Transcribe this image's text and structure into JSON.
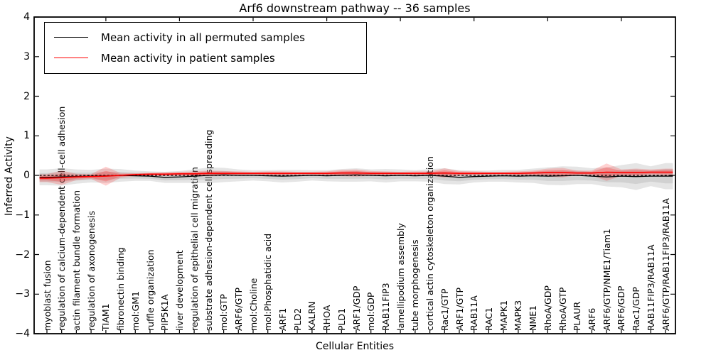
{
  "chart_data": {
    "type": "line",
    "title": "Arf6 downstream pathway -- 36 samples",
    "xlabel": "Cellular Entities",
    "ylabel": "Inferred Activity",
    "ylim": [
      -4,
      4
    ],
    "yticks": [
      -4,
      -3,
      -2,
      -1,
      0,
      1,
      2,
      3,
      4
    ],
    "grid": false,
    "legend_position": "upper left",
    "zero_line": {
      "style": "dotted",
      "color": "#000000"
    },
    "categories": [
      "myoblast fusion",
      "regulation of calcium-dependent cell-cell adhesion",
      "actin filament bundle formation",
      "regulation of axonogenesis",
      "TIAM1",
      "fibronectin binding",
      "mol:GM1",
      "ruffle organization",
      "PIP5K1A",
      "liver development",
      "regulation of epithelial cell migration",
      "substrate adhesion-dependent cell spreading",
      "mol:GTP",
      "ARF6/GTP",
      "mol:Choline",
      "mol:Phosphatidic acid",
      "ARF1",
      "PLD2",
      "KALRN",
      "RHOA",
      "PLD1",
      "ARF1/GDP",
      "mol:GDP",
      "RAB11FIP3",
      "lamellipodium assembly",
      "tube morphogenesis",
      "cortical actin cytoskeleton organization",
      "Rac1/GTP",
      "ARF1/GTP",
      "RAB11A",
      "RAC1",
      "MAPK1",
      "MAPK3",
      "NME1",
      "RhoA/GDP",
      "RhoA/GTP",
      "PLAUR",
      "ARF6",
      "ARF6/GTP/NME1/Tiam1",
      "ARF6/GDP",
      "Rac1/GDP",
      "RAB11FIP3/RAB11A",
      "ARF6/GTP/RAB11FIP3/RAB11A"
    ],
    "series": [
      {
        "name": "Mean activity in all permuted samples",
        "color": "#000000",
        "band_color": "#999999",
        "values": [
          -0.05,
          -0.04,
          -0.03,
          -0.02,
          -0.01,
          0.0,
          -0.01,
          -0.02,
          -0.05,
          -0.04,
          -0.02,
          0.0,
          0.01,
          0.0,
          0.0,
          -0.01,
          -0.02,
          -0.01,
          0.0,
          -0.01,
          0.0,
          0.01,
          0.0,
          -0.01,
          0.0,
          -0.01,
          0.0,
          -0.02,
          -0.05,
          -0.03,
          -0.02,
          -0.01,
          -0.02,
          -0.01,
          -0.02,
          -0.01,
          0.0,
          -0.02,
          -0.04,
          -0.02,
          -0.03,
          -0.02,
          -0.02
        ],
        "band_halfwidth": [
          0.2,
          0.22,
          0.18,
          0.16,
          0.18,
          0.16,
          0.13,
          0.12,
          0.14,
          0.15,
          0.17,
          0.2,
          0.18,
          0.15,
          0.13,
          0.14,
          0.16,
          0.15,
          0.13,
          0.14,
          0.16,
          0.17,
          0.15,
          0.17,
          0.15,
          0.14,
          0.16,
          0.2,
          0.18,
          0.15,
          0.14,
          0.15,
          0.16,
          0.18,
          0.22,
          0.24,
          0.22,
          0.2,
          0.24,
          0.28,
          0.34,
          0.25,
          0.33
        ]
      },
      {
        "name": "Mean activity in patient samples",
        "color": "#ff0000",
        "band_color": "#ff0000",
        "values": [
          -0.07,
          -0.06,
          -0.04,
          -0.03,
          -0.02,
          0.0,
          0.02,
          0.03,
          0.03,
          0.04,
          0.04,
          0.05,
          0.05,
          0.05,
          0.05,
          0.05,
          0.05,
          0.05,
          0.05,
          0.05,
          0.06,
          0.06,
          0.05,
          0.05,
          0.05,
          0.05,
          0.05,
          0.06,
          0.05,
          0.05,
          0.05,
          0.05,
          0.05,
          0.06,
          0.07,
          0.07,
          0.06,
          0.06,
          0.08,
          0.07,
          0.07,
          0.08,
          0.08
        ],
        "band_halfwidth": [
          0.1,
          0.18,
          0.08,
          0.06,
          0.24,
          0.06,
          0.04,
          0.04,
          0.05,
          0.05,
          0.06,
          0.07,
          0.06,
          0.05,
          0.04,
          0.05,
          0.05,
          0.04,
          0.04,
          0.05,
          0.08,
          0.09,
          0.06,
          0.05,
          0.04,
          0.05,
          0.05,
          0.12,
          0.06,
          0.05,
          0.04,
          0.04,
          0.05,
          0.06,
          0.1,
          0.12,
          0.06,
          0.06,
          0.22,
          0.08,
          0.1,
          0.07,
          0.09
        ]
      }
    ]
  }
}
